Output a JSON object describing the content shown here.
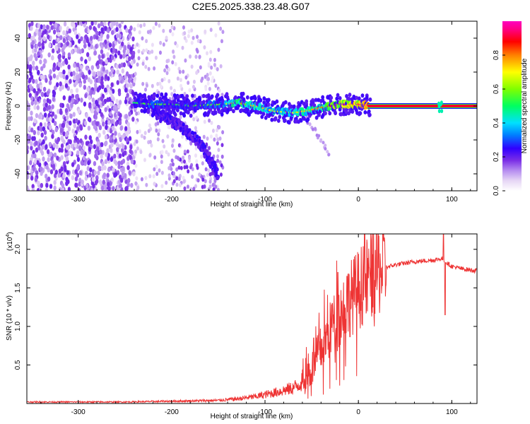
{
  "figure_title": "C2E5.2025.338.23.48.G07",
  "chart_data": [
    {
      "type": "heatmap",
      "xlabel": "Height of straight line (km)",
      "ylabel": "Frequency (Hz)",
      "xlim": [
        -355,
        127
      ],
      "ylim": [
        -50,
        50
      ],
      "x_ticks": [
        -300,
        -200,
        -100,
        0,
        100
      ],
      "y_ticks": [
        -40,
        -20,
        0,
        20,
        40
      ],
      "x_tick_labels": [
        "-300",
        "-200",
        "-100",
        "0",
        "100"
      ],
      "y_tick_labels": [
        "-40",
        "-20",
        "0",
        "20",
        "40"
      ],
      "colorbar": {
        "label": "Normalized spectral amplitude",
        "range": [
          0,
          1
        ],
        "ticks": [
          0.0,
          0.2,
          0.4,
          0.6,
          0.8
        ],
        "tick_labels": [
          "0.0",
          "0.2",
          "0.4",
          "0.6",
          "0.8"
        ],
        "colormap": "rainbow"
      },
      "noise_region": {
        "x_range": [
          -355,
          -240
        ],
        "amplitude": 0.15
      },
      "sparse_noise_region": {
        "x_range": [
          -240,
          -145
        ],
        "amplitude": 0.05
      },
      "signal_track": [
        {
          "x": -240,
          "y": 2,
          "amp": 0.25
        },
        {
          "x": -220,
          "y": 1,
          "amp": 0.35
        },
        {
          "x": -200,
          "y": 1,
          "amp": 0.3
        },
        {
          "x": -180,
          "y": 0,
          "amp": 0.3
        },
        {
          "x": -145,
          "y": 1,
          "amp": 0.35
        },
        {
          "x": -130,
          "y": 2,
          "amp": 0.55
        },
        {
          "x": -110,
          "y": 0,
          "amp": 0.5
        },
        {
          "x": -90,
          "y": -3,
          "amp": 0.45
        },
        {
          "x": -70,
          "y": -4,
          "amp": 0.45
        },
        {
          "x": -55,
          "y": -3,
          "amp": 0.5
        },
        {
          "x": -40,
          "y": -1,
          "amp": 0.55
        },
        {
          "x": -20,
          "y": 1,
          "amp": 0.7
        },
        {
          "x": 0,
          "y": 1,
          "amp": 0.8
        },
        {
          "x": 20,
          "y": 0,
          "amp": 0.95
        },
        {
          "x": 60,
          "y": 0,
          "amp": 0.95
        },
        {
          "x": 90,
          "y": 0,
          "amp": 0.7
        },
        {
          "x": 127,
          "y": 0,
          "amp": 0.95
        }
      ],
      "drift_branch": [
        {
          "x": -220,
          "y": -3
        },
        {
          "x": -190,
          "y": -12
        },
        {
          "x": -170,
          "y": -22
        },
        {
          "x": -150,
          "y": -40
        }
      ],
      "tail_branch": [
        {
          "x": -60,
          "y": -5
        },
        {
          "x": -45,
          "y": -15
        },
        {
          "x": -30,
          "y": -30
        }
      ]
    },
    {
      "type": "line",
      "xlabel": "Height of straight line (km)",
      "ylabel": "SNR (10 * v/v)",
      "y_multiplier_label": "(x10",
      "y_multiplier_exp": "4",
      "xlim": [
        -355,
        127
      ],
      "ylim": [
        0,
        2.2
      ],
      "x_ticks": [
        -300,
        -200,
        -100,
        0,
        100
      ],
      "y_ticks": [
        0.5,
        1.0,
        1.5,
        2.0
      ],
      "x_tick_labels": [
        "-300",
        "-200",
        "-100",
        "0",
        "100"
      ],
      "y_tick_labels": [
        "0.5",
        "1.0",
        "1.5",
        "2.0"
      ],
      "color": "#ee3333",
      "series": [
        {
          "x": [
            -355,
            -300,
            -250,
            -200,
            -150,
            -130,
            -110,
            -90,
            -70,
            -60,
            -50,
            -40,
            -30,
            -20,
            -10,
            0,
            10,
            20,
            30,
            40,
            50,
            60,
            70,
            80,
            90,
            95,
            100,
            110,
            127
          ],
          "y": [
            0.02,
            0.02,
            0.02,
            0.03,
            0.04,
            0.06,
            0.09,
            0.14,
            0.2,
            0.28,
            0.45,
            0.7,
            0.95,
            1.15,
            1.35,
            1.48,
            1.62,
            1.72,
            1.77,
            1.8,
            1.82,
            1.84,
            1.85,
            1.86,
            1.88,
            1.82,
            1.78,
            1.75,
            1.72
          ]
        }
      ],
      "spikes": [
        {
          "x": -48,
          "y": 0.85
        },
        {
          "x": -28,
          "y": 1.3
        },
        {
          "x": -22,
          "y": 1.7
        },
        {
          "x": -12,
          "y": 1.65
        },
        {
          "x": 91,
          "y": 2.2
        },
        {
          "x": 93,
          "y": 1.15
        }
      ]
    }
  ]
}
